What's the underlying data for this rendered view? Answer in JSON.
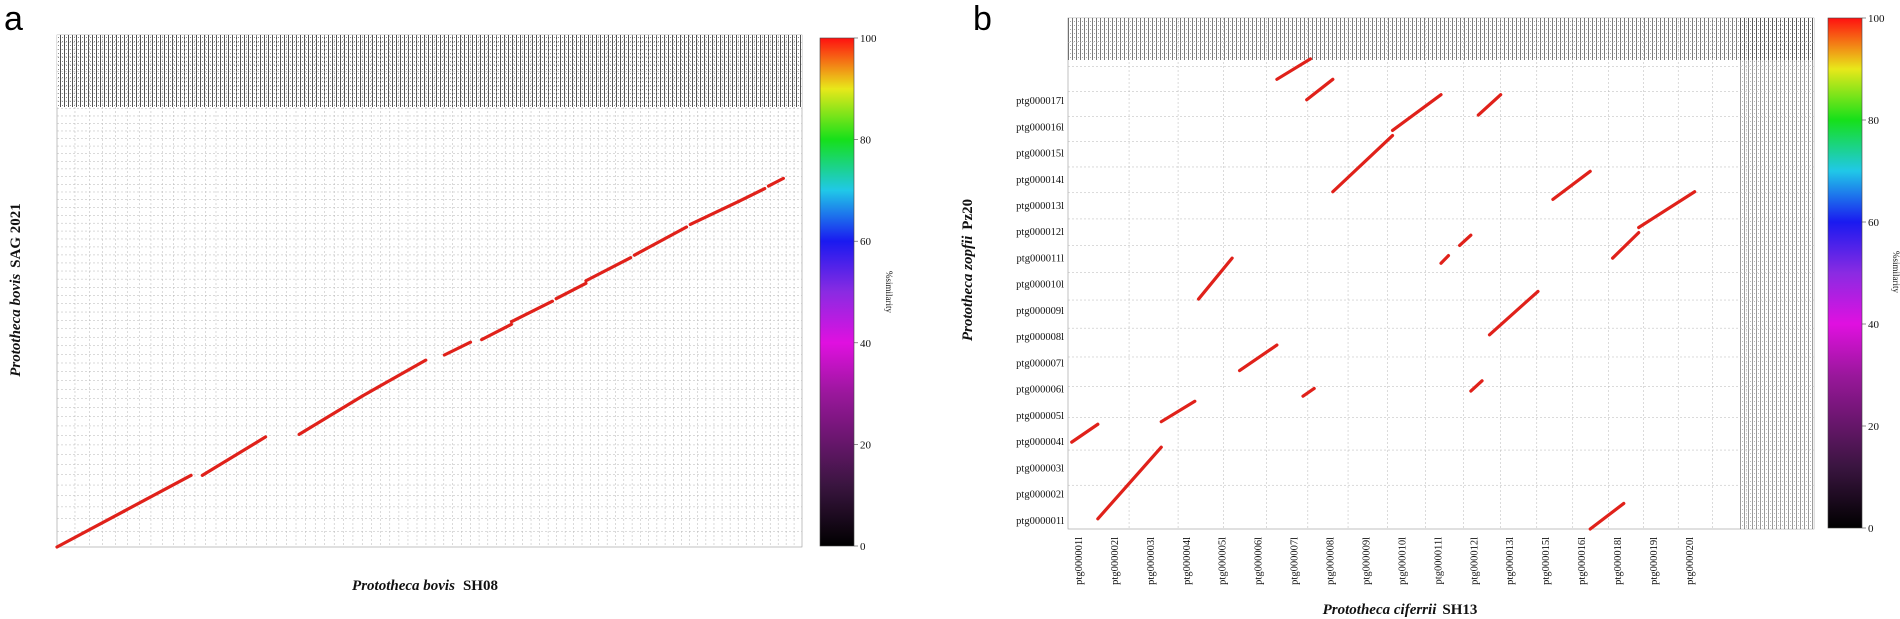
{
  "figure": {
    "panel_a_letter": "a",
    "panel_b_letter": "b"
  },
  "chart_data": [
    {
      "type": "scatter",
      "subtype": "dot-plot (genome alignment)",
      "panel": "a",
      "title": "",
      "xlabel_species": "Prototheca bovis",
      "xlabel_strain": "SH08",
      "ylabel_species": "Prototheca bovis",
      "ylabel_strain": "SAG 2021",
      "xlim": [
        0,
        100
      ],
      "ylim": [
        0,
        100
      ],
      "grid": true,
      "colorbar": {
        "label": "%similarity",
        "min": 0,
        "max": 100,
        "ticks": [
          "0",
          "20",
          "40",
          "60",
          "80",
          "100"
        ]
      },
      "alignments": [
        {
          "x": [
            0,
            9
          ],
          "y": [
            0,
            7
          ]
        },
        {
          "x": [
            9,
            18
          ],
          "y": [
            7,
            14
          ]
        },
        {
          "x": [
            19.5,
            28
          ],
          "y": [
            14,
            21.5
          ]
        },
        {
          "x": [
            32.5,
            41
          ],
          "y": [
            22,
            29.5
          ]
        },
        {
          "x": [
            41,
            49.5
          ],
          "y": [
            29.5,
            36.5
          ]
        },
        {
          "x": [
            52,
            55.5
          ],
          "y": [
            37.5,
            40
          ]
        },
        {
          "x": [
            57,
            61
          ],
          "y": [
            40.5,
            43.5
          ]
        },
        {
          "x": [
            61,
            66.5
          ],
          "y": [
            44,
            48
          ]
        },
        {
          "x": [
            67,
            71
          ],
          "y": [
            48.5,
            51.5
          ]
        },
        {
          "x": [
            71,
            77
          ],
          "y": [
            52,
            56.5
          ]
        },
        {
          "x": [
            77.5,
            84.5
          ],
          "y": [
            57,
            62.5
          ]
        },
        {
          "x": [
            85,
            91.5
          ],
          "y": [
            63,
            67.5
          ]
        },
        {
          "x": [
            91.5,
            95
          ],
          "y": [
            67.5,
            70
          ]
        },
        {
          "x": [
            95.5,
            97.5
          ],
          "y": [
            70.5,
            72
          ]
        }
      ]
    },
    {
      "type": "scatter",
      "subtype": "dot-plot (genome alignment)",
      "panel": "b",
      "title": "",
      "xlabel_species": "Prototheca ciferrii",
      "xlabel_strain": "SH13",
      "ylabel_species": "Prototheca zopfii",
      "ylabel_strain": "Pz20",
      "xlim": [
        0,
        100
      ],
      "ylim": [
        0,
        100
      ],
      "grid": true,
      "x_tick_labels": [
        "ptg000001l",
        "ptg000002l",
        "ptg000003l",
        "ptg000004l",
        "ptg000005l",
        "ptg000006l",
        "ptg000007l",
        "ptg000008l",
        "ptg000009l",
        "ptg000010l",
        "ptg000011l",
        "ptg000012l",
        "ptg000013l",
        "ptg000015l",
        "ptg000016l",
        "ptg000018l",
        "ptg000019l",
        "ptg000020l"
      ],
      "y_tick_labels": [
        "ptg000001l",
        "ptg000002l",
        "ptg000003l",
        "ptg000004l",
        "ptg000005l",
        "ptg000006l",
        "ptg000007l",
        "ptg000008l",
        "ptg000009l",
        "ptg000010l",
        "ptg000011l",
        "ptg000012l",
        "ptg000013l",
        "ptg000014l",
        "ptg000015l",
        "ptg000016l",
        "ptg000017l"
      ],
      "colorbar": {
        "label": "%similarity",
        "min": 0,
        "max": 100,
        "ticks": [
          "0",
          "20",
          "40",
          "60",
          "80",
          "100"
        ]
      },
      "alignments": [
        {
          "x": [
            0.5,
            4
          ],
          "y": [
            17,
            20.5
          ]
        },
        {
          "x": [
            4,
            12.5
          ],
          "y": [
            2,
            16
          ]
        },
        {
          "x": [
            12.5,
            17
          ],
          "y": [
            21,
            25
          ]
        },
        {
          "x": [
            17.5,
            22
          ],
          "y": [
            45,
            53
          ]
        },
        {
          "x": [
            23,
            28
          ],
          "y": [
            31,
            36
          ]
        },
        {
          "x": [
            28,
            32.5
          ],
          "y": [
            88,
            92
          ]
        },
        {
          "x": [
            31.5,
            33
          ],
          "y": [
            26,
            27.5
          ]
        },
        {
          "x": [
            32,
            35.5
          ],
          "y": [
            84,
            88
          ]
        },
        {
          "x": [
            35.5,
            43.5
          ],
          "y": [
            66,
            77
          ]
        },
        {
          "x": [
            43.5,
            50
          ],
          "y": [
            78,
            85
          ]
        },
        {
          "x": [
            50,
            51
          ],
          "y": [
            52,
            53.5
          ]
        },
        {
          "x": [
            52.5,
            54
          ],
          "y": [
            55.5,
            57.5
          ]
        },
        {
          "x": [
            54,
            55.5
          ],
          "y": [
            27,
            29
          ]
        },
        {
          "x": [
            55,
            58
          ],
          "y": [
            81,
            85
          ]
        },
        {
          "x": [
            56.5,
            63
          ],
          "y": [
            38,
            46.5
          ]
        },
        {
          "x": [
            65,
            70
          ],
          "y": [
            64.5,
            70
          ]
        },
        {
          "x": [
            70,
            74.5
          ],
          "y": [
            0,
            5
          ]
        },
        {
          "x": [
            73,
            76.5
          ],
          "y": [
            53,
            58
          ]
        },
        {
          "x": [
            76.5,
            84
          ],
          "y": [
            59,
            66
          ]
        }
      ]
    }
  ]
}
